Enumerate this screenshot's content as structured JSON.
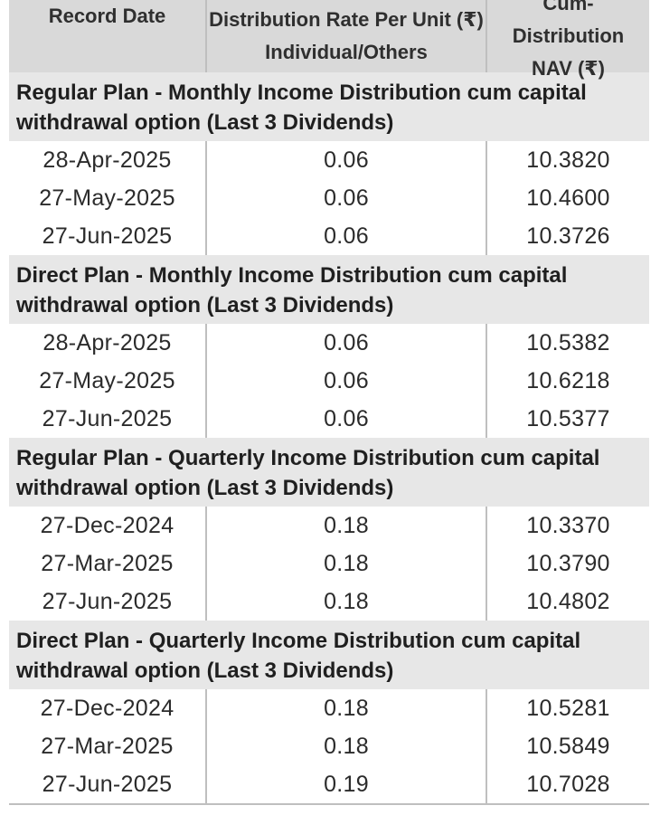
{
  "header": {
    "col1": "Record Date",
    "col2_line1": "Distribution Rate Per Unit  (₹)",
    "col2_line2": "Individual/Others",
    "col3_line1": "Cum-Distribution",
    "col3_line2": "NAV (₹)"
  },
  "sections": [
    {
      "title_line1": "Regular Plan - Monthly Income Distribution cum capital",
      "title_line2": "withdrawal option (Last 3 Dividends)",
      "rows": [
        {
          "date": "28-Apr-2025",
          "rate": "0.06",
          "nav": "10.3820"
        },
        {
          "date": "27-May-2025",
          "rate": "0.06",
          "nav": "10.4600"
        },
        {
          "date": "27-Jun-2025",
          "rate": "0.06",
          "nav": "10.3726"
        }
      ]
    },
    {
      "title_line1": "Direct Plan - Monthly Income Distribution cum capital",
      "title_line2": "withdrawal option (Last 3 Dividends)",
      "rows": [
        {
          "date": "28-Apr-2025",
          "rate": "0.06",
          "nav": "10.5382"
        },
        {
          "date": "27-May-2025",
          "rate": "0.06",
          "nav": "10.6218"
        },
        {
          "date": "27-Jun-2025",
          "rate": "0.06",
          "nav": "10.5377"
        }
      ]
    },
    {
      "title_line1": "Regular Plan - Quarterly Income Distribution cum capital",
      "title_line2": "withdrawal option (Last 3 Dividends)",
      "rows": [
        {
          "date": "27-Dec-2024",
          "rate": "0.18",
          "nav": "10.3370"
        },
        {
          "date": "27-Mar-2025",
          "rate": "0.18",
          "nav": "10.3790"
        },
        {
          "date": "27-Jun-2025",
          "rate": "0.18",
          "nav": "10.4802"
        }
      ]
    },
    {
      "title_line1": "Direct Plan - Quarterly Income Distribution cum capital",
      "title_line2": "withdrawal option (Last 3 Dividends)",
      "rows": [
        {
          "date": "27-Dec-2024",
          "rate": "0.18",
          "nav": "10.5281"
        },
        {
          "date": "27-Mar-2025",
          "rate": "0.18",
          "nav": "10.5849"
        },
        {
          "date": "27-Jun-2025",
          "rate": "0.19",
          "nav": "10.7028"
        }
      ]
    }
  ]
}
